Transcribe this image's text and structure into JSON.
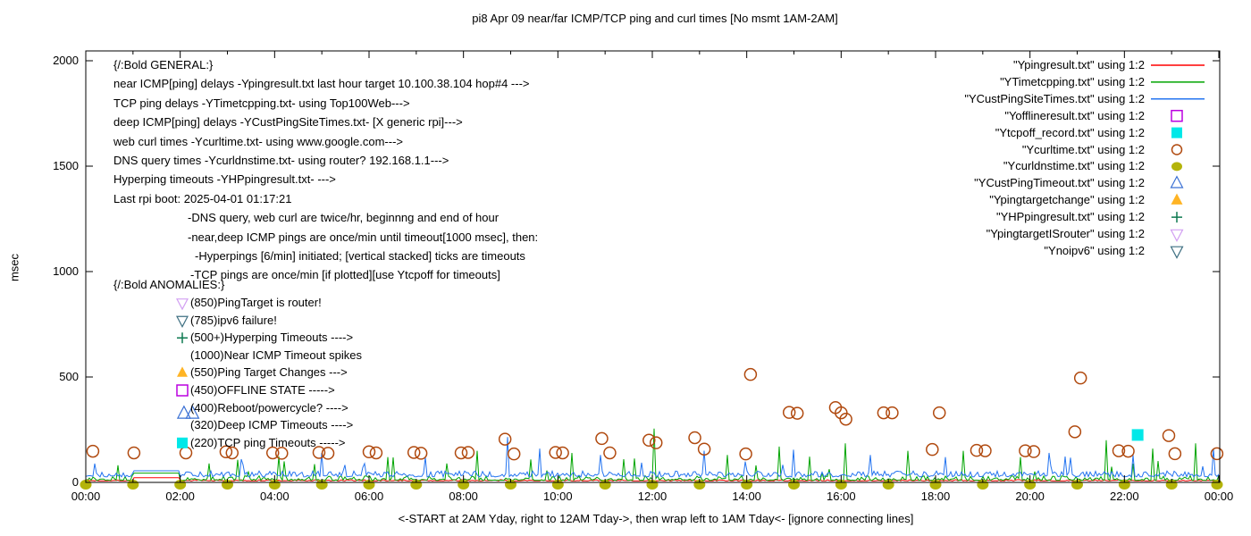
{
  "title": "pi8 Apr 09  near/far ICMP/TCP ping and curl times [No msmt 1AM-2AM]",
  "ylabel": "msec",
  "caption": "<-START at 2AM Yday, right to 12AM Tday->, then wrap left to 1AM Tday<- [ignore connecting lines]",
  "colors": {
    "near_icmp": "#ff0000",
    "tcp_ping": "#00a400",
    "deep_icmp": "#2474f0",
    "offline": "#bb00e0",
    "tcpoff": "#00e8e8",
    "curl": "#b0490e",
    "dns": "#b4b40a",
    "cust_timeout": "#3a70d4",
    "target_change": "#ffb424",
    "hyperping": "#0e7a50",
    "target_is_router": "#d2a0f2",
    "noipv6": "#3f7082",
    "axis": "#000000"
  },
  "general": {
    "lines": [
      {
        "text": "{/:Bold GENERAL:}",
        "indent": 0
      },
      {
        "text": "near ICMP[ping] delays -Ypingresult.txt last hour target 10.100.38.104 hop#4 --->",
        "indent": 0
      },
      {
        "text": "TCP ping delays -YTimetcpping.txt- using Top100Web--->",
        "indent": 0
      },
      {
        "text": "deep ICMP[ping] delays -YCustPingSiteTimes.txt- [X generic rpi]--->",
        "indent": 0
      },
      {
        "text": "web curl times -Ycurltime.txt- using www.google.com--->",
        "indent": 0
      },
      {
        "text": "DNS query times -Ycurldnstime.txt- using router? 192.168.1.1--->",
        "indent": 0
      },
      {
        "text": "Hyperping timeouts -YHPpingresult.txt- --->",
        "indent": 0
      },
      {
        "text": "Last rpi boot: 2025-04-01 01:17:21",
        "indent": 0
      },
      {
        "text": "-DNS query, web curl are twice/hr, beginnng and end of hour",
        "indent": 83
      },
      {
        "text": "-near,deep ICMP pings are once/min until timeout[1000 msec], then:",
        "indent": 83
      },
      {
        "text": "-Hyperpings [6/min] initiated; [vertical stacked] ticks are timeouts",
        "indent": 91
      },
      {
        "text": "-TCP pings are once/min [if plotted][use Ytcpoff for timeouts]",
        "indent": 86
      }
    ]
  },
  "anomalies": {
    "title": "{/:Bold ANOMALIES:}",
    "rows": [
      {
        "marker": "tri-down-open",
        "marker_color": "#d2a0f2",
        "text": "(850)PingTarget is router!"
      },
      {
        "marker": "tri-down-open",
        "marker_color": "#3f7082",
        "text": "(785)ipv6 failure!"
      },
      {
        "marker": "plus",
        "marker_color": "#0e7a50",
        "text": "(500+)Hyperping Timeouts ---->"
      },
      {
        "marker": null,
        "marker_color": null,
        "text": "(1000)Near ICMP Timeout spikes"
      },
      {
        "marker": "tri-up-filled",
        "marker_color": "#ffb424",
        "text": "(550)Ping Target Changes --->"
      },
      {
        "marker": "square-open",
        "marker_color": "#bb00e0",
        "text": "(450)OFFLINE STATE ----->"
      },
      {
        "marker": null,
        "marker_color": null,
        "text": "(400)Reboot/powercycle? ---->"
      },
      {
        "marker": null,
        "marker_color": null,
        "text": "(320)Deep ICMP Timeouts ---->"
      },
      {
        "marker": "square-filled",
        "marker_color": "#00e8e8",
        "text": "(220)TCP ping Timeouts ----->"
      }
    ]
  },
  "legend": {
    "entries": [
      {
        "label": "\"Ypingresult.txt\" using 1:2",
        "sample": "line",
        "color": "#ff0000"
      },
      {
        "label": "\"YTimetcpping.txt\" using 1:2",
        "sample": "line",
        "color": "#00a400"
      },
      {
        "label": "\"YCustPingSiteTimes.txt\" using 1:2",
        "sample": "line",
        "color": "#2474f0"
      },
      {
        "label": "\"Yofflineresult.txt\" using 1:2",
        "sample": "square-open",
        "color": "#bb00e0"
      },
      {
        "label": "\"Ytcpoff_record.txt\" using 1:2",
        "sample": "square-filled",
        "color": "#00e8e8"
      },
      {
        "label": "\"Ycurltime.txt\" using 1:2",
        "sample": "circle-open",
        "color": "#b0490e"
      },
      {
        "label": "\"Ycurldnstime.txt\" using 1:2",
        "sample": "circle-filled",
        "color": "#b4b40a"
      },
      {
        "label": "\"YCustPingTimeout.txt\" using 1:2",
        "sample": "tri-up-open",
        "color": "#3a70d4"
      },
      {
        "label": "\"Ypingtargetchange\" using 1:2",
        "sample": "tri-up-filled",
        "color": "#ffb424"
      },
      {
        "label": "\"YHPpingresult.txt\" using 1:2",
        "sample": "plus",
        "color": "#0e7a50"
      },
      {
        "label": "\"YpingtargetISrouter\" using 1:2",
        "sample": "tri-down-open",
        "color": "#d2a0f2"
      },
      {
        "label": "\"Ynoipv6\" using 1:2",
        "sample": "tri-down-open",
        "color": "#3f7082"
      }
    ]
  },
  "chart_data": {
    "type": "line",
    "title": "pi8 Apr 09  near/far ICMP/TCP ping and curl times [No msmt 1AM-2AM]",
    "xlabel": "<-START at 2AM Yday, right to 12AM Tday->, then wrap left to 1AM Tday<- [ignore connecting lines]",
    "ylabel": "msec",
    "x_axis": {
      "tick_labels": [
        "00:00",
        "02:00",
        "04:00",
        "06:00",
        "08:00",
        "10:00",
        "12:00",
        "14:00",
        "16:00",
        "18:00",
        "20:00",
        "22:00",
        "00:00"
      ],
      "tick_hours": [
        0,
        2,
        4,
        6,
        8,
        10,
        12,
        14,
        16,
        18,
        20,
        22,
        24
      ],
      "minor_every_hour": true,
      "range_hours": [
        0,
        24
      ]
    },
    "y_axis": {
      "ticks": [
        0,
        500,
        1000,
        1500,
        2000
      ],
      "range": [
        0,
        2000
      ]
    },
    "gap_hours": [
      1,
      2
    ],
    "grid": false,
    "legend_position": "top-right",
    "series": [
      {
        "name": "Ypingresult.txt",
        "style": "noisy-line",
        "color": "#ff0000",
        "baseline": 7,
        "amp": 6,
        "pow": 2,
        "spike_prob": 0.0,
        "spike_amp": 0,
        "gap_value": 22,
        "seed": 7,
        "spikes": []
      },
      {
        "name": "YTimetcpping.txt",
        "style": "noisy-line",
        "color": "#00a400",
        "baseline": 10,
        "amp": 22,
        "pow": 3,
        "spike_prob": 0.035,
        "spike_amp": 120,
        "gap_value": 44,
        "seed": 13,
        "spikes": [
          [
            2.6,
            90
          ],
          [
            4.2,
            100
          ],
          [
            6.4,
            120
          ],
          [
            8.3,
            150
          ],
          [
            10.3,
            140
          ],
          [
            11.4,
            110
          ],
          [
            12.05,
            255
          ],
          [
            13.6,
            130
          ],
          [
            14.7,
            170
          ],
          [
            16.1,
            185
          ],
          [
            17.4,
            150
          ],
          [
            18.6,
            150
          ],
          [
            19.8,
            120
          ],
          [
            21.6,
            200
          ],
          [
            22.6,
            160
          ],
          [
            23.5,
            185
          ]
        ]
      },
      {
        "name": "YCustPingSiteTimes.txt",
        "style": "noisy-line",
        "color": "#2474f0",
        "baseline": 26,
        "amp": 28,
        "pow": 1.6,
        "spike_prob": 0.02,
        "spike_amp": 80,
        "gap_value": 55,
        "seed": 29,
        "spikes": [
          [
            3.3,
            110
          ],
          [
            5.0,
            140
          ],
          [
            7.2,
            120
          ],
          [
            8.93,
            215
          ],
          [
            9.6,
            160
          ],
          [
            10.9,
            130
          ],
          [
            13.1,
            150
          ],
          [
            15.0,
            155
          ],
          [
            16.6,
            130
          ],
          [
            18.2,
            120
          ],
          [
            20.4,
            140
          ],
          [
            22.2,
            130
          ],
          [
            23.9,
            160
          ]
        ]
      },
      {
        "name": "Ycurltime.txt",
        "style": "circle-open",
        "color": "#b0490e",
        "points": [
          [
            0.15,
            148
          ],
          [
            1.02,
            140
          ],
          [
            2.12,
            140
          ],
          [
            2.97,
            145
          ],
          [
            3.1,
            140
          ],
          [
            3.96,
            140
          ],
          [
            4.15,
            138
          ],
          [
            4.94,
            142
          ],
          [
            5.13,
            138
          ],
          [
            6.0,
            145
          ],
          [
            6.15,
            140
          ],
          [
            6.95,
            142
          ],
          [
            7.1,
            138
          ],
          [
            7.95,
            140
          ],
          [
            8.1,
            142
          ],
          [
            8.88,
            205
          ],
          [
            9.07,
            135
          ],
          [
            9.95,
            142
          ],
          [
            10.1,
            140
          ],
          [
            10.93,
            208
          ],
          [
            11.1,
            140
          ],
          [
            11.93,
            200
          ],
          [
            12.08,
            188
          ],
          [
            12.9,
            212
          ],
          [
            13.1,
            158
          ],
          [
            13.98,
            135
          ],
          [
            14.08,
            512
          ],
          [
            14.9,
            332
          ],
          [
            15.07,
            328
          ],
          [
            15.88,
            355
          ],
          [
            16.0,
            330
          ],
          [
            16.1,
            300
          ],
          [
            16.9,
            330
          ],
          [
            17.08,
            330
          ],
          [
            17.93,
            156
          ],
          [
            18.08,
            330
          ],
          [
            18.87,
            152
          ],
          [
            19.05,
            150
          ],
          [
            19.9,
            150
          ],
          [
            20.08,
            146
          ],
          [
            20.95,
            240
          ],
          [
            21.07,
            495
          ],
          [
            21.88,
            150
          ],
          [
            22.08,
            148
          ],
          [
            22.94,
            222
          ],
          [
            23.07,
            136
          ],
          [
            23.96,
            136
          ]
        ]
      },
      {
        "name": "Ycurldnstime.txt",
        "style": "circle-filled",
        "color": "#b4b40a",
        "value_msec": 0,
        "hours": [
          0,
          1,
          2,
          3,
          4,
          5,
          6,
          7,
          8,
          9,
          10,
          11,
          12,
          13,
          14,
          15,
          16,
          17,
          18,
          19,
          20,
          21,
          22,
          23,
          24
        ]
      },
      {
        "name": "YCustPingTimeout.txt",
        "style": "tri-up-open",
        "color": "#3a70d4",
        "points": [
          [
            2.08,
            326
          ],
          [
            2.26,
            326
          ]
        ]
      },
      {
        "name": "Ytcpoff_record.txt",
        "style": "square-filled",
        "color": "#00e8e8",
        "points": [
          [
            22.28,
            225
          ]
        ]
      }
    ]
  }
}
